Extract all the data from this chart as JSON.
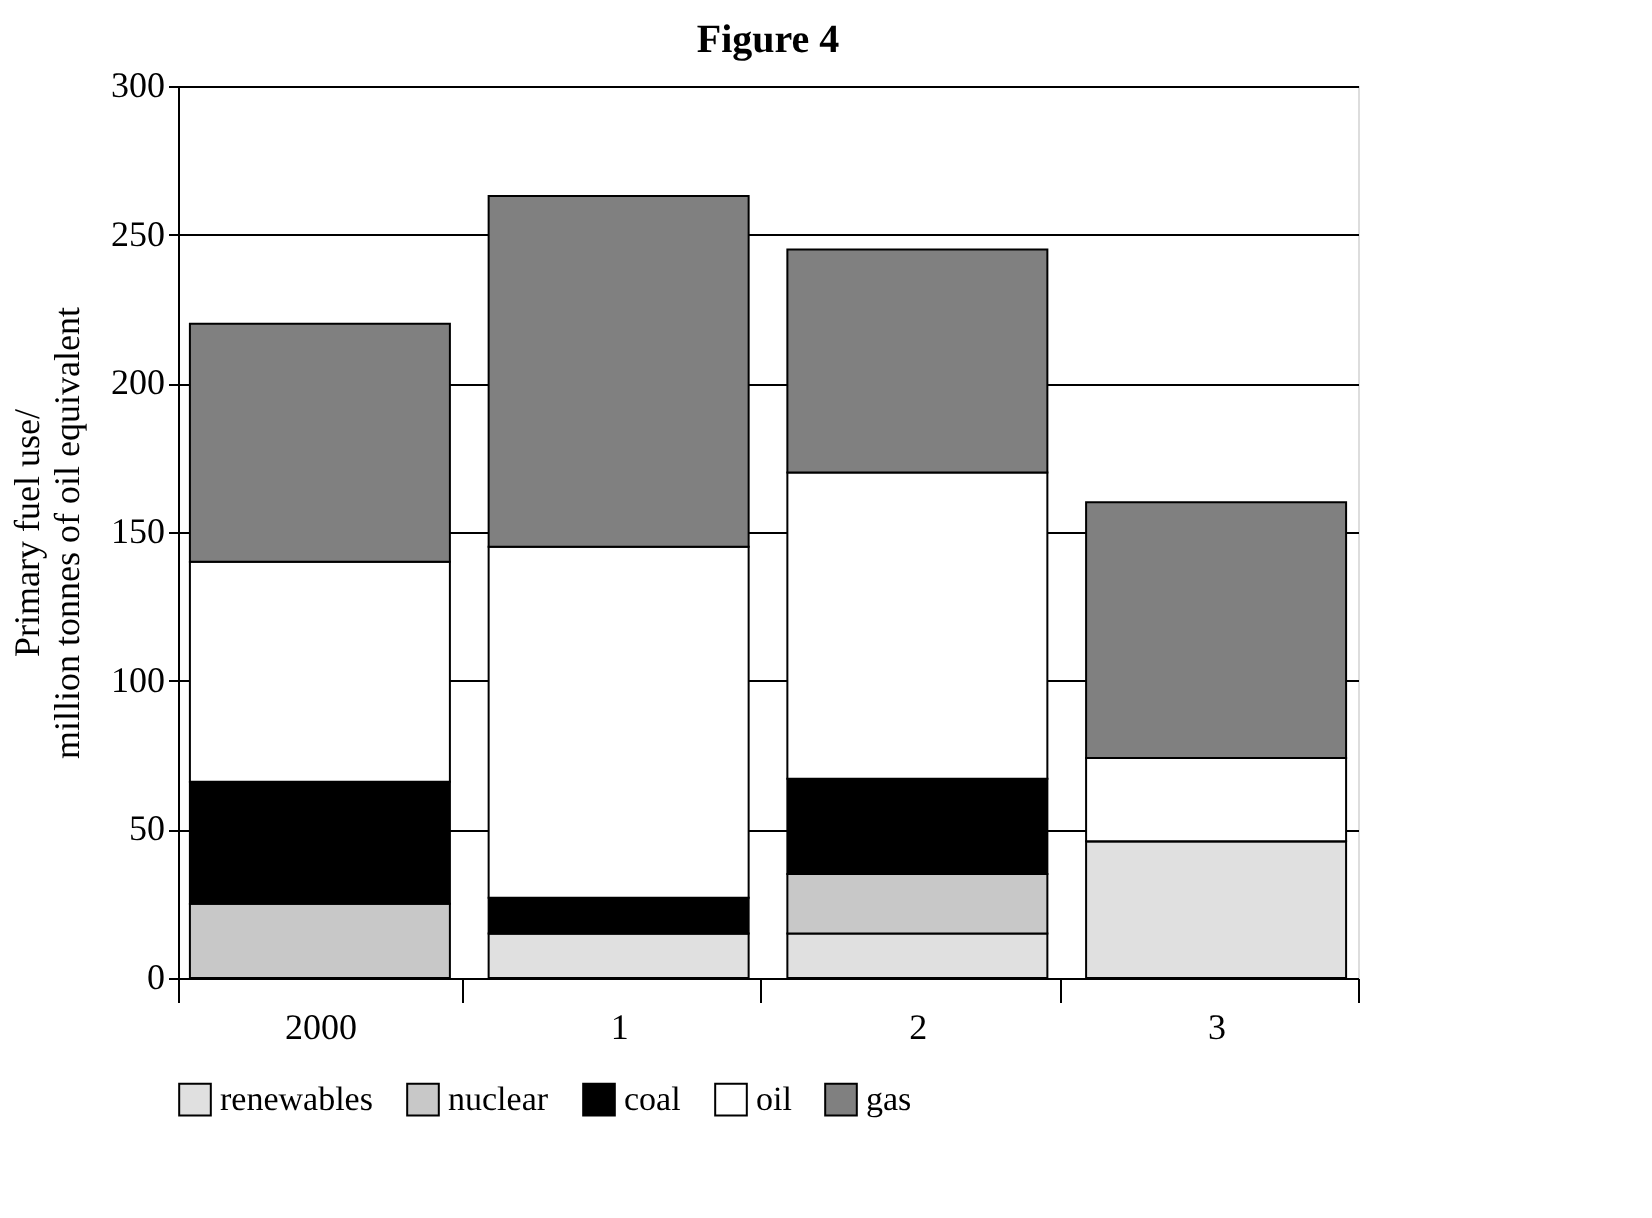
{
  "chart_data": {
    "type": "bar",
    "title": "Figure 4",
    "ylabel": "Primary fuel use/\nmillion tonnes of oil equivalent",
    "categories": [
      "2000",
      "1",
      "2",
      "3"
    ],
    "stacked": true,
    "series": [
      {
        "name": "renewables",
        "color": "#e0e0e0",
        "values": [
          0,
          15,
          15,
          46
        ]
      },
      {
        "name": "nuclear",
        "color": "#c8c8c8",
        "values": [
          25,
          0,
          20,
          0
        ]
      },
      {
        "name": "coal",
        "color": "#000000",
        "values": [
          41,
          12,
          32,
          0
        ]
      },
      {
        "name": "oil",
        "color": "#ffffff",
        "values": [
          74,
          118,
          103,
          28
        ]
      },
      {
        "name": "gas",
        "color": "#808080",
        "values": [
          80,
          118,
          75,
          86
        ]
      }
    ],
    "ylim": [
      0,
      300
    ],
    "yticks": [
      0,
      50,
      100,
      150,
      200,
      250,
      300
    ],
    "grid": "y",
    "legend": "bottom"
  }
}
